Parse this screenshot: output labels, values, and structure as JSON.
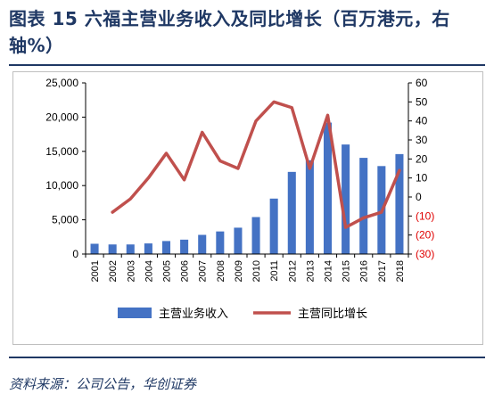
{
  "header": {
    "title": "图表 15  六福主营业务收入及同比增长（百万港元，右轴%）"
  },
  "footer": {
    "source": "资料来源：公司公告，华创证券"
  },
  "colors": {
    "bar": "#4472c4",
    "line": "#c0504d",
    "title": "#1f3864",
    "negative_tick": "#e00000",
    "axis_text": "#000000"
  },
  "chart_data": {
    "type": "bar",
    "categories": [
      "2001",
      "2002",
      "2003",
      "2004",
      "2005",
      "2006",
      "2007",
      "2008",
      "2009",
      "2010",
      "2011",
      "2012",
      "2013",
      "2014",
      "2015",
      "2016",
      "2017",
      "2018"
    ],
    "y_left": {
      "ylim": [
        0,
        25000
      ],
      "ticks": [
        0,
        5000,
        10000,
        15000,
        20000,
        25000
      ],
      "tick_labels": [
        "0",
        "5,000",
        "10,000",
        "15,000",
        "20,000",
        "25,000"
      ]
    },
    "y_right": {
      "ylim": [
        -30,
        60
      ],
      "ticks": [
        -30,
        -20,
        -10,
        0,
        10,
        20,
        30,
        40,
        50,
        60
      ],
      "tick_labels": [
        "(30)",
        "(20)",
        "(10)",
        "0",
        "10",
        "20",
        "30",
        "40",
        "50",
        "60"
      ]
    },
    "series": [
      {
        "name": "主营业务收入",
        "type": "bar",
        "axis": "left",
        "values": [
          1500,
          1400,
          1400,
          1550,
          1900,
          2100,
          2800,
          3300,
          3850,
          5400,
          8100,
          12000,
          13700,
          19200,
          16000,
          14050,
          12850,
          14600
        ]
      },
      {
        "name": "主营同比增长",
        "type": "line",
        "axis": "right",
        "values": [
          null,
          -8,
          -1,
          10,
          23,
          9,
          34,
          19,
          15,
          40,
          50,
          47,
          15,
          43,
          -16,
          -11,
          -8,
          14
        ]
      }
    ],
    "legend_position": "bottom",
    "grid": false
  }
}
